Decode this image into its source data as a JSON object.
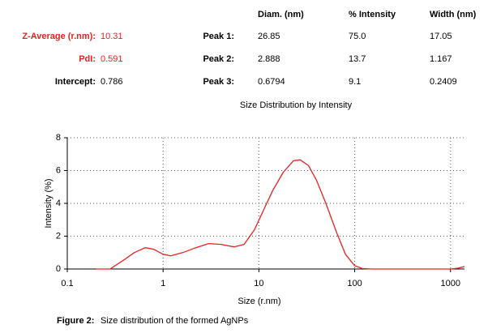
{
  "summary": {
    "left": [
      {
        "label": "Z-Average (r.nm):",
        "value": "10.31"
      },
      {
        "label": "PdI:",
        "value": "0.591"
      },
      {
        "label": "Intercept:",
        "value": "0.786"
      }
    ],
    "headers": [
      "Diam. (nm)",
      "% Intensity",
      "Width (nm)"
    ],
    "peaks": [
      {
        "label": "Peak 1:",
        "cells": [
          "26.85",
          "75.0",
          "17.05"
        ]
      },
      {
        "label": "Peak 2:",
        "cells": [
          "2.888",
          "13.7",
          "1.167"
        ]
      },
      {
        "label": "Peak 3:",
        "cells": [
          "0.6794",
          "9.1",
          "0.2409"
        ]
      }
    ]
  },
  "chart_data": {
    "type": "line",
    "title": "Size Distribution by Intensity",
    "x_label": "Size (r.nm)",
    "y_label": "Intensity (%)",
    "xscale": "log",
    "grid": true,
    "x": [
      0.2,
      0.28,
      0.4,
      0.5,
      0.65,
      0.8,
      1.0,
      1.2,
      1.6,
      2.2,
      3.0,
      4,
      5.5,
      7,
      9,
      11,
      14,
      18,
      23,
      27,
      33,
      40,
      50,
      65,
      80,
      100,
      120,
      150,
      1000,
      1200,
      1400
    ],
    "series": [
      {
        "name": "Intensity",
        "color": "#e8211f",
        "values": [
          0,
          0,
          0.6,
          1.0,
          1.3,
          1.2,
          0.9,
          0.8,
          1.0,
          1.3,
          1.55,
          1.5,
          1.35,
          1.5,
          2.4,
          3.5,
          4.8,
          5.9,
          6.6,
          6.65,
          6.3,
          5.4,
          4.0,
          2.2,
          0.9,
          0.2,
          0.03,
          0,
          0,
          0.05,
          0.15
        ]
      }
    ],
    "xlim": [
      0.1,
      1400
    ],
    "xticks": [
      0.1,
      1,
      10,
      100,
      1000
    ],
    "ylim": [
      0,
      8
    ],
    "yticks": [
      0,
      2,
      4,
      6,
      8
    ]
  },
  "caption": {
    "label": "Figure 2:",
    "text": "Size distribution of the formed AgNPs"
  }
}
